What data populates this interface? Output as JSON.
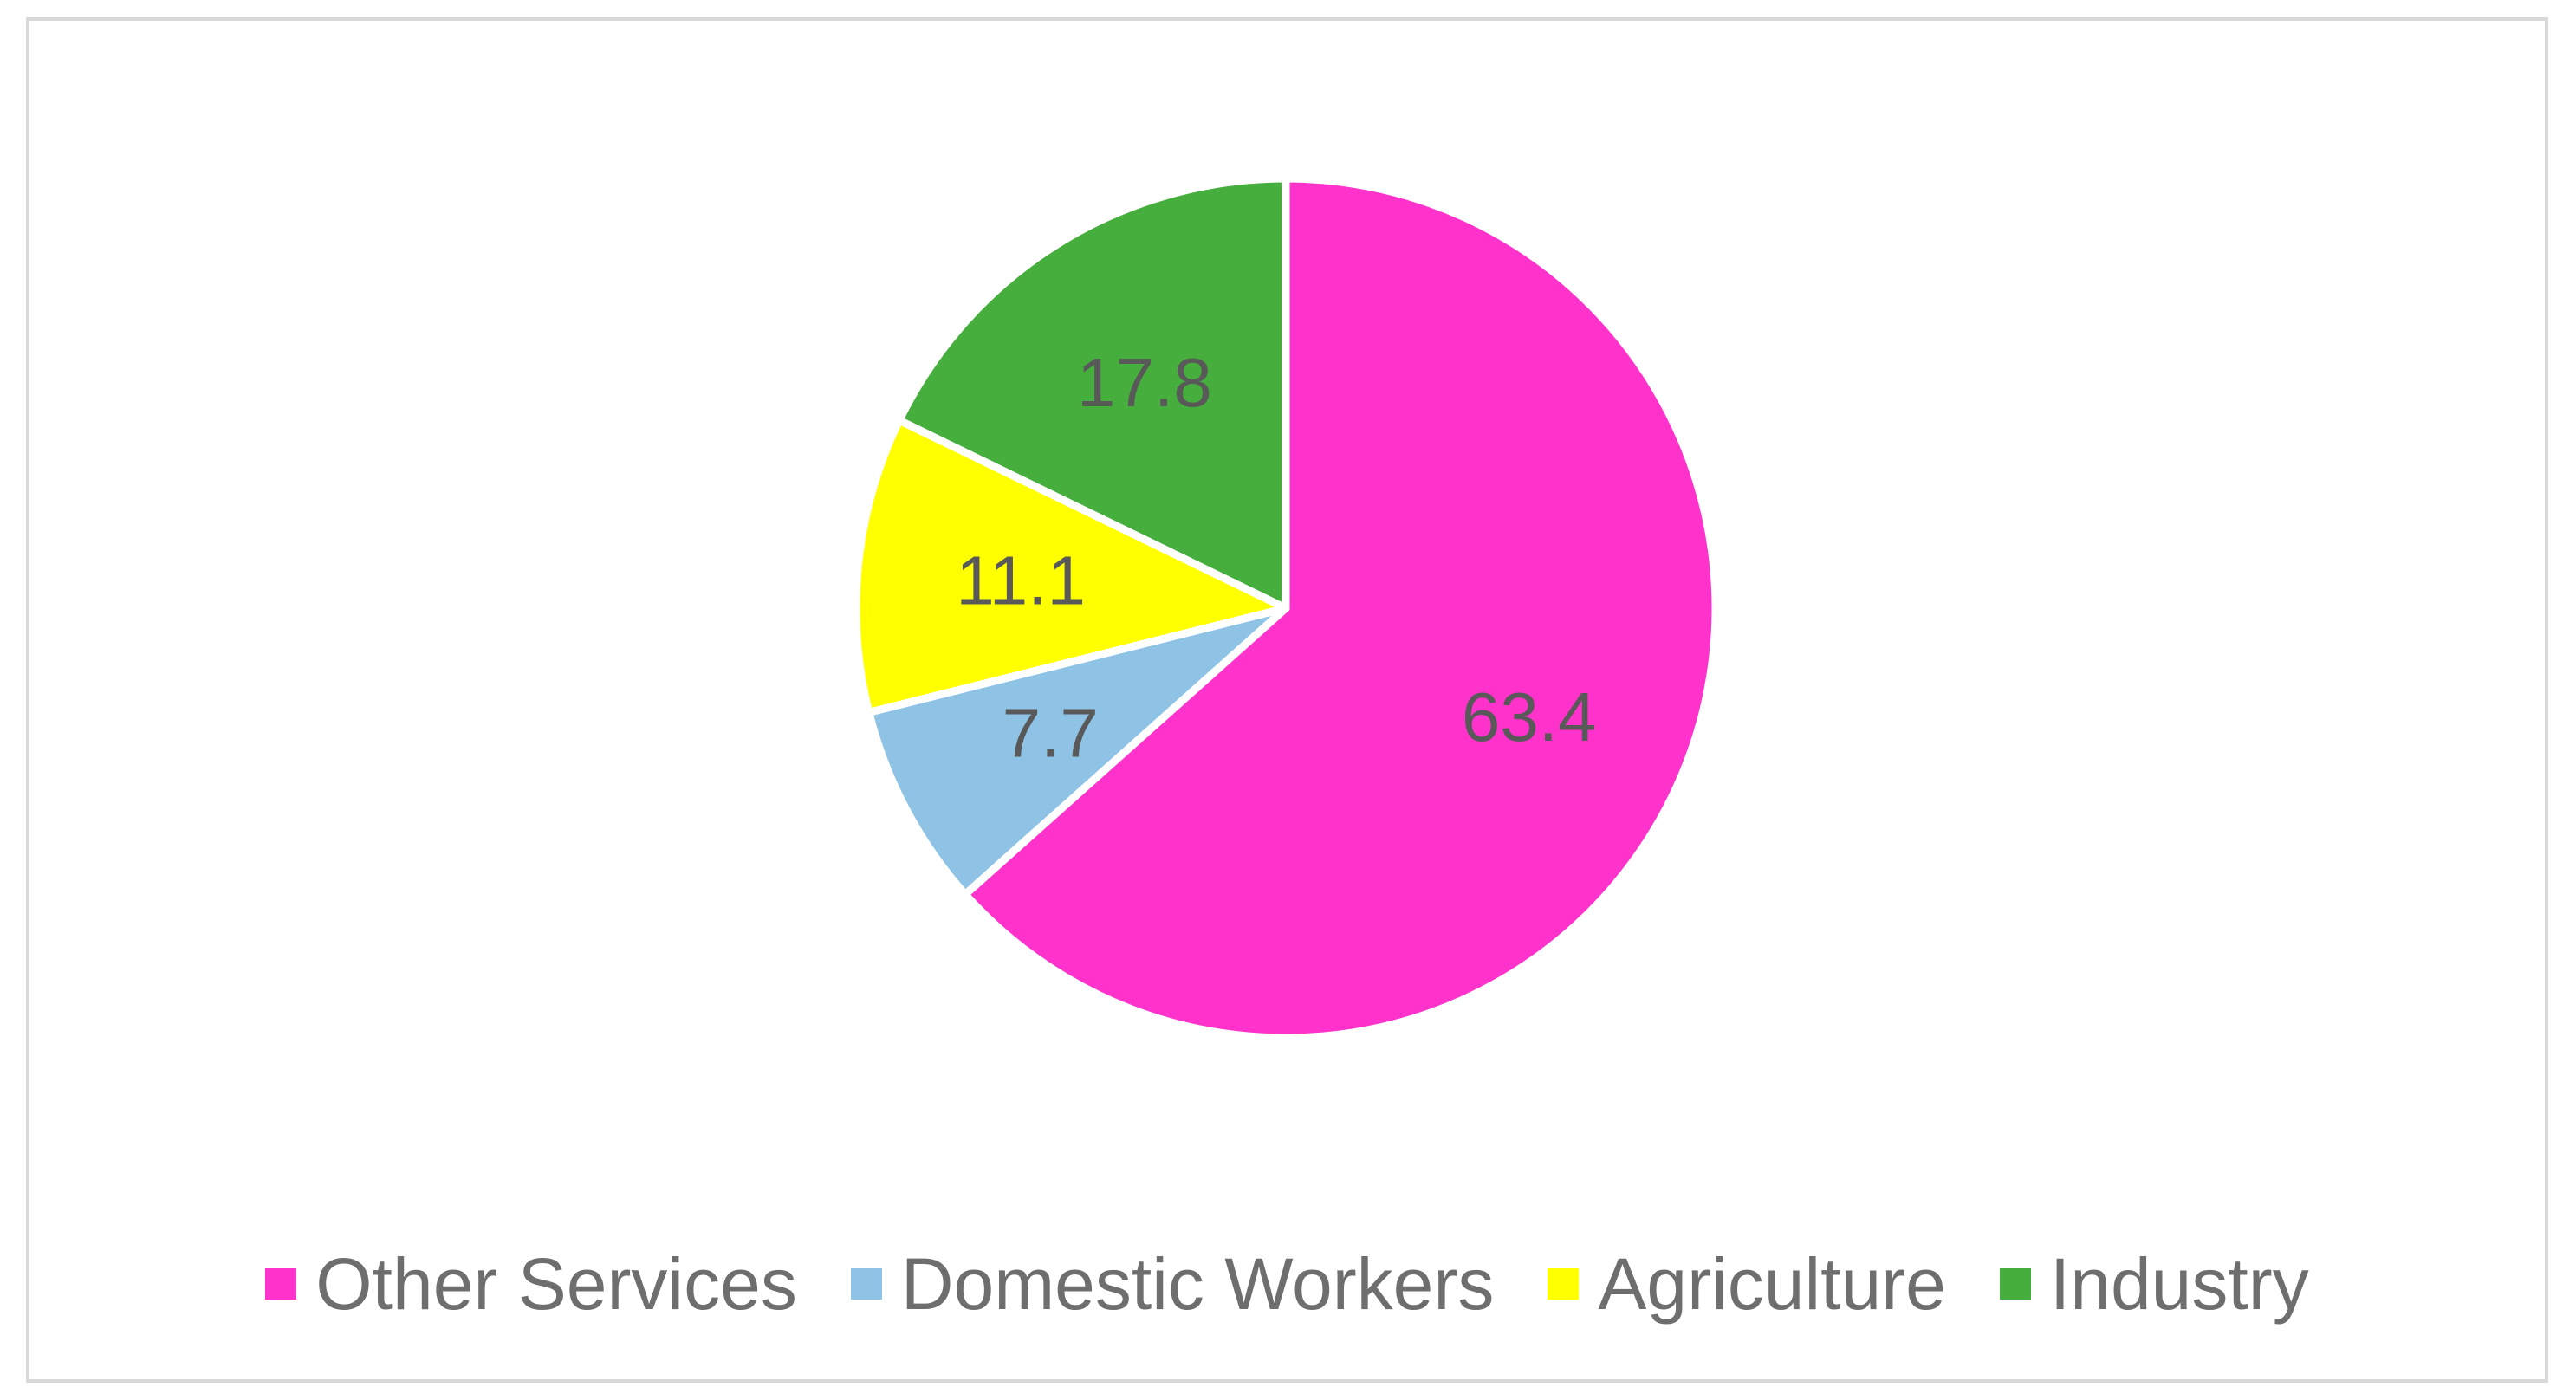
{
  "chart_data": {
    "type": "pie",
    "slices": [
      {
        "name": "Other Services",
        "value": 63.4,
        "label": "63.4",
        "color": "#FF33CC"
      },
      {
        "name": "Domestic Workers",
        "value": 7.7,
        "label": "7.7",
        "color": "#8EC3E6"
      },
      {
        "name": "Agriculture",
        "value": 11.1,
        "label": "11.1",
        "color": "#FFFF00"
      },
      {
        "name": "Industry",
        "value": 17.8,
        "label": "17.8",
        "color": "#45AE3C"
      }
    ],
    "legend_placement": "bottom",
    "start_angle": "12 o'clock",
    "direction": "clockwise"
  }
}
